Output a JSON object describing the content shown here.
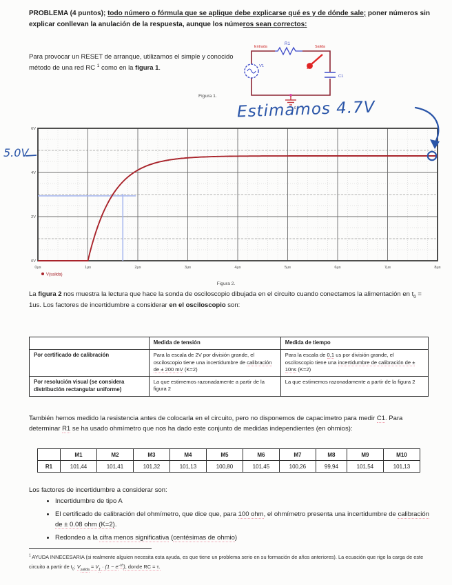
{
  "document": {
    "header_runs": [
      {
        "t": "PROBLEMA (4 puntos); ",
        "c": "b"
      },
      {
        "t": "todo número o fórmula que se aplique debe explicarse qué es y de dónde sale;",
        "c": "b u"
      },
      {
        "t": " poner números sin explicar conllevan la anulación de la respuesta, aunque los núme",
        "c": "b"
      },
      {
        "t": "ros sean correctos:",
        "c": "b u"
      }
    ],
    "intro_runs": [
      {
        "t": "Para provocar un RESET de arranque, utilizamos el simple y conocido método de una red RC "
      },
      {
        "t": "1",
        "c": "sup"
      },
      {
        "t": " como en la "
      },
      {
        "t": "figura 1",
        "c": "b"
      },
      {
        "t": "."
      }
    ],
    "figura2_text_runs": [
      {
        "t": "La "
      },
      {
        "t": "figura 2",
        "c": "b"
      },
      {
        "t": " nos muestra la lectura que hace la sonda de osciloscopio dibujada en el circuito cuando conectamos la alimentación en t"
      },
      {
        "t": "0",
        "c": "sub"
      },
      {
        "t": " = 1us. Los factores de incertidumbre a considerar "
      },
      {
        "t": "en el osciloscopio",
        "c": "b"
      },
      {
        "t": " son:"
      }
    ],
    "resistencia_runs": [
      {
        "t": "También hemos medido la resistencia antes de colocarla en el circuito, pero no disponemos de capacímetro para medir "
      },
      {
        "t": "C1",
        "c": "w"
      },
      {
        "t": ". Para determinar "
      },
      {
        "t": "R1",
        "c": "w"
      },
      {
        "t": " se ha usado ohmímetro que nos ha dado este conjunto de medidas independientes (en ohmios):"
      }
    ],
    "factores_label": "Los factores de incertidumbre a considerar son:",
    "bullet1": "Incertidumbre de tipo A",
    "bullet2_runs": [
      {
        "t": "El certificado de calibración del ohmímetro, que dice que, para "
      },
      {
        "t": "100 ohm",
        "c": "w"
      },
      {
        "t": ", el ohmímetro presenta una incertidumbre de "
      },
      {
        "t": "calibración de ± 0.08 ohm (K=2)",
        "c": "w"
      },
      {
        "t": "."
      }
    ],
    "bullet3_runs": [
      {
        "t": "Redondeo a la "
      },
      {
        "t": "cifra menos significativa",
        "c": "w"
      },
      {
        "t": " ("
      },
      {
        "t": "centésimas de ohmio",
        "c": "w"
      },
      {
        "t": ")"
      }
    ],
    "footnote_runs": [
      {
        "t": "1 ",
        "c": "sup"
      },
      {
        "t": "AYUDA INNECESARIA (si realmente alguien necesita esta ayuda, es que tiene un problema serio en su formación de años anteriores). La ecuación que rige la carga de este circuito a partir de t"
      },
      {
        "t": "0",
        "c": "sub"
      },
      {
        "t": ": "
      },
      {
        "t": "V",
        "c": "i w"
      },
      {
        "t": "salida",
        "c": "i w sub"
      },
      {
        "t": " = V",
        "c": "i w"
      },
      {
        "t": "1",
        "c": "i w sub"
      },
      {
        "t": " · (1 − e",
        "c": "i w"
      },
      {
        "t": "−t/τ",
        "c": "i w sup"
      },
      {
        "t": ")",
        "c": "i w"
      },
      {
        "t": ", donde RC = τ.",
        "c": "w"
      }
    ]
  },
  "figure1": {
    "caption": "Figura 1.",
    "entrada": "Entrada",
    "salida": "Salida",
    "r1": "R1",
    "v1": "V1",
    "c1": "C1",
    "ground": "0"
  },
  "figure2": {
    "caption": "Figura 2."
  },
  "chart_data": {
    "type": "line",
    "description": "Captura de osciloscopio: carga exponencial RC de V(salida)",
    "x_ticks": [
      "0µs",
      "1µs",
      "2µs",
      "3µs",
      "4µs",
      "5µs",
      "6µs",
      "7µs",
      "8µs"
    ],
    "y_ticks": [
      "0V",
      "2V",
      "4V",
      "6V"
    ],
    "xlim": [
      0,
      8
    ],
    "ylim": [
      0,
      6
    ],
    "x_major": 1,
    "x_minor": 0.2,
    "y_major": 2,
    "y_mid": 1,
    "y_minor": 0.5,
    "grid": true,
    "legend": {
      "label": "V(salida)",
      "position": "bottom-left",
      "color": "#a8232a"
    },
    "series": [
      {
        "name": "V(salida)",
        "color": "#a8232a",
        "t0_us": 1,
        "tau_us": 0.5,
        "v_final": 4.75,
        "x": [
          0,
          1,
          1.25,
          1.5,
          1.75,
          2,
          2.5,
          3,
          3.5,
          4,
          5,
          6,
          7,
          8
        ],
        "y": [
          0,
          0,
          1.87,
          3.0,
          3.69,
          4.11,
          4.51,
          4.66,
          4.72,
          4.74,
          4.75,
          4.75,
          4.75,
          4.75
        ]
      }
    ],
    "cursor": {
      "t_us": 1.7,
      "v": 2.94,
      "color": "#a9b9ef"
    },
    "annotations": {
      "level_label": "5.0V",
      "estimate_label": "Estimamos 4.7V",
      "ink_color": "#2a55a8"
    }
  },
  "osc_table": {
    "headers": [
      "",
      "Medida de tensión",
      "Medida de tiempo"
    ],
    "row1_label": "Por certificado de calibración",
    "row1_tension_runs": [
      {
        "t": "Para la escala de 2V por división grande, el osciloscopio tiene una incertidumbre de "
      },
      {
        "t": "calibración de ± 200 mV",
        "c": "w"
      },
      {
        "t": " (K=2)"
      }
    ],
    "row1_tiempo_runs": [
      {
        "t": "Para la escala de "
      },
      {
        "t": "0,1",
        "c": "w"
      },
      {
        "t": " us por división grande, el osciloscopio tiene una "
      },
      {
        "t": "incertidumbre de calibración de ± 10ns",
        "c": "w"
      },
      {
        "t": " (K=2)"
      }
    ],
    "row2_label": "Por resolución visual (se considera distribución rectangular uniforme)",
    "row2_tension": "La que estimemos razonadamente a partir de la figura 2",
    "row2_tiempo": "La que estimemos razonadamente a partir de la figura 2"
  },
  "r1_table": {
    "corner": "",
    "headers": [
      "M1",
      "M2",
      "M3",
      "M4",
      "M5",
      "M6",
      "M7",
      "M8",
      "M9",
      "M10"
    ],
    "row_label": "R1",
    "values": [
      "101,44",
      "101,41",
      "101,32",
      "101,13",
      "100,80",
      "101,45",
      "100,26",
      "99,94",
      "101,54",
      "101,13"
    ]
  }
}
